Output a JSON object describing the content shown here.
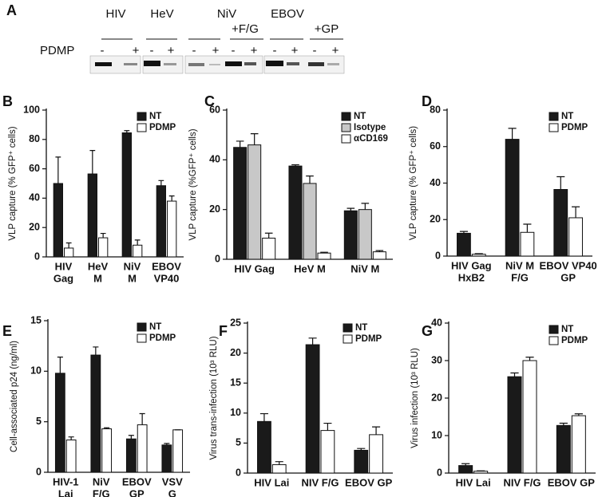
{
  "blot": {
    "label": "A",
    "groups": [
      "HIV",
      "HeV",
      "NiV",
      "EBOV"
    ],
    "subgroups": [
      "+F/G",
      "+GP"
    ],
    "row_label": "PDMP",
    "signs": [
      "-",
      "+",
      "-",
      "+",
      "-",
      "+",
      "-",
      "+",
      "-",
      "+",
      "-",
      "+"
    ]
  },
  "chart_data": [
    {
      "type": "bar",
      "label": "B",
      "y_label": "VLP capture (% GFP⁺ cells)",
      "categories": [
        [
          "HIV",
          "Gag"
        ],
        [
          "HeV",
          "M"
        ],
        [
          "NiV",
          "M"
        ],
        [
          "EBOV",
          "VP40"
        ]
      ],
      "series": [
        {
          "name": "NT",
          "color": "#1a1a1a",
          "values": [
            50,
            56.5,
            84.5,
            48.5
          ],
          "errors": [
            18,
            16,
            1.5,
            3.5
          ]
        },
        {
          "name": "PDMP",
          "color": "#ffffff",
          "values": [
            6,
            13,
            8,
            38
          ],
          "errors": [
            3.5,
            3,
            3.5,
            3.5
          ]
        }
      ],
      "ylim": [
        0,
        100
      ],
      "yticks": [
        0,
        20,
        40,
        60,
        80,
        100
      ],
      "legend": "upper right"
    },
    {
      "type": "bar",
      "label": "C",
      "y_label": "VLP capture (%GFP⁺ cells)",
      "categories": [
        "HIV Gag",
        "HeV M",
        "NiV M"
      ],
      "series": [
        {
          "name": "NT",
          "color": "#1a1a1a",
          "values": [
            45,
            37.5,
            19.5
          ],
          "errors": [
            2.5,
            0.5,
            1
          ]
        },
        {
          "name": "Isotype",
          "color": "#c8c8c8",
          "values": [
            46,
            30.5,
            20
          ],
          "errors": [
            4.5,
            3,
            2.5
          ]
        },
        {
          "name": "αCD169",
          "color": "#ffffff",
          "values": [
            8.5,
            2.5,
            3
          ],
          "errors": [
            2,
            0.3,
            0.5
          ]
        }
      ],
      "ylim": [
        0,
        60
      ],
      "yticks": [
        0,
        20,
        40,
        60
      ],
      "legend": "upper right"
    },
    {
      "type": "bar",
      "label": "D",
      "y_label": "VLP capture (% GFP⁺ cells)",
      "categories": [
        [
          "HIV Gag",
          "HxB2"
        ],
        [
          "NiV M",
          "F/G"
        ],
        [
          "EBOV VP40",
          "GP"
        ]
      ],
      "series": [
        {
          "name": "NT",
          "color": "#1a1a1a",
          "values": [
            12.5,
            64,
            36.5
          ],
          "errors": [
            1,
            6,
            7
          ]
        },
        {
          "name": "PDMP",
          "color": "#ffffff",
          "values": [
            1,
            13,
            21
          ],
          "errors": [
            0.3,
            4.5,
            6
          ]
        }
      ],
      "ylim": [
        0,
        80
      ],
      "yticks": [
        0,
        20,
        40,
        60,
        80
      ],
      "legend": "upper right"
    },
    {
      "type": "bar",
      "label": "E",
      "y_label": "Cell-associated p24 (ng/ml)",
      "categories": [
        [
          "HIV-1",
          "Lai"
        ],
        [
          "NiV",
          "F/G"
        ],
        [
          "EBOV",
          "GP"
        ],
        [
          "VSV",
          "G"
        ]
      ],
      "series": [
        {
          "name": "NT",
          "color": "#1a1a1a",
          "values": [
            9.8,
            11.6,
            3.3,
            2.7
          ],
          "errors": [
            1.6,
            0.8,
            0.35,
            0.15
          ]
        },
        {
          "name": "PDMP",
          "color": "#ffffff",
          "values": [
            3.2,
            4.3,
            4.7,
            4.2
          ],
          "errors": [
            0.3,
            0.1,
            1.1,
            0
          ]
        }
      ],
      "ylim": [
        0,
        15
      ],
      "yticks": [
        0,
        5,
        10,
        15
      ],
      "legend": "upper right"
    },
    {
      "type": "bar",
      "label": "F",
      "y_label": "Virus trans-infection (10³ RLU)",
      "categories": [
        "HIV Lai",
        "NIV F/G",
        "EBOV GP"
      ],
      "series": [
        {
          "name": "NT",
          "color": "#1a1a1a",
          "values": [
            8.6,
            21.4,
            3.8
          ],
          "errors": [
            1.3,
            1.1,
            0.3
          ]
        },
        {
          "name": "PDMP",
          "color": "#ffffff",
          "values": [
            1.4,
            7.1,
            6.4
          ],
          "errors": [
            0.5,
            1.2,
            1.3
          ]
        }
      ],
      "ylim": [
        0,
        25
      ],
      "yticks": [
        0,
        5,
        10,
        15,
        20,
        25
      ],
      "legend": "upper right"
    },
    {
      "type": "bar",
      "label": "G",
      "y_label": "Virus infection (10³ RLU)",
      "categories": [
        "HIV Lai",
        "NIV F/G",
        "EBOV GP"
      ],
      "series": [
        {
          "name": "NT",
          "color": "#1a1a1a",
          "values": [
            2,
            25.7,
            12.7
          ],
          "errors": [
            0.5,
            1,
            0.6
          ]
        },
        {
          "name": "PDMP",
          "color": "#ffffff",
          "values": [
            0.5,
            30,
            15.3
          ],
          "errors": [
            0.1,
            0.9,
            0.5
          ]
        }
      ],
      "ylim": [
        0,
        40
      ],
      "yticks": [
        0,
        10,
        20,
        30,
        40
      ],
      "legend": "upper right"
    }
  ]
}
